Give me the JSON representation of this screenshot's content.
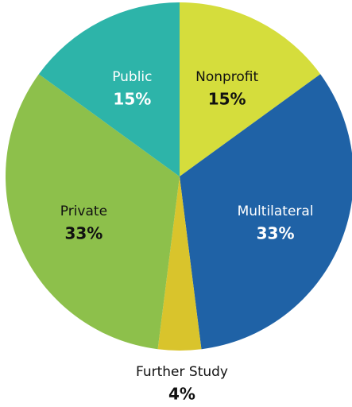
{
  "chart_data": {
    "type": "pie",
    "categories": [
      "Nonprofit",
      "Multilateral",
      "Further Study",
      "Private",
      "Public"
    ],
    "values": [
      15,
      33,
      4,
      33,
      15
    ],
    "value_labels": [
      "15%",
      "33%",
      "4%",
      "33%",
      "15%"
    ],
    "colors": [
      "#d5dd3c",
      "#1f62a6",
      "#d9c42c",
      "#8dc04b",
      "#2db4a9"
    ],
    "label_colors": [
      "#111111",
      "#ffffff",
      "#111111",
      "#111111",
      "#ffffff"
    ]
  }
}
